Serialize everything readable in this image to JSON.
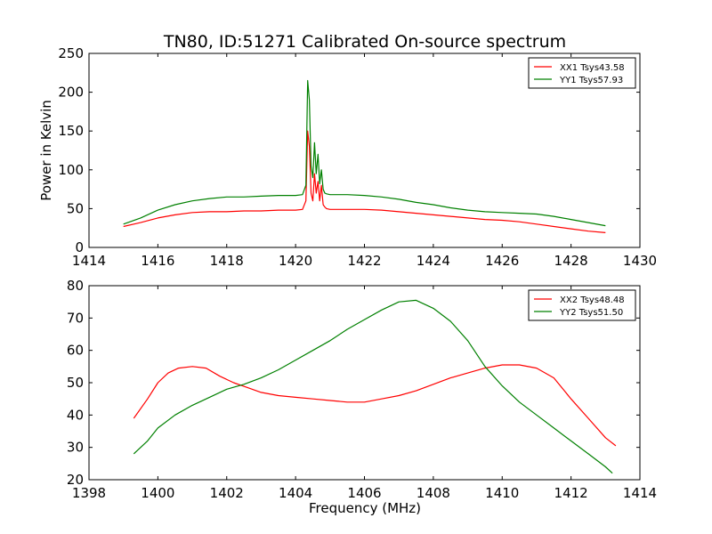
{
  "title": "TN80, ID:51271 Calibrated On-source spectrum",
  "chart_data": [
    {
      "type": "line",
      "ylabel": "Power in Kelvin",
      "xlabel": "",
      "xlim": [
        1414,
        1430
      ],
      "ylim": [
        0,
        250
      ],
      "xticks": [
        "1414",
        "1416",
        "1418",
        "1420",
        "1422",
        "1424",
        "1426",
        "1428",
        "1430"
      ],
      "yticks": [
        "0",
        "50",
        "100",
        "150",
        "200",
        "250"
      ],
      "legend_position": "top-right",
      "series": [
        {
          "name": "XX1 Tsys43.58",
          "color": "#ff0000",
          "x": [
            1415.0,
            1415.5,
            1416.0,
            1416.5,
            1417.0,
            1417.5,
            1418.0,
            1418.5,
            1419.0,
            1419.5,
            1420.0,
            1420.2,
            1420.3,
            1420.35,
            1420.4,
            1420.45,
            1420.5,
            1420.55,
            1420.6,
            1420.65,
            1420.7,
            1420.75,
            1420.8,
            1420.85,
            1420.9,
            1421.0,
            1421.5,
            1422.0,
            1422.5,
            1423.0,
            1423.5,
            1424.0,
            1424.5,
            1425.0,
            1425.5,
            1426.0,
            1426.5,
            1427.0,
            1427.5,
            1428.0,
            1428.5,
            1429.0
          ],
          "y": [
            27,
            32,
            38,
            42,
            45,
            46,
            46,
            47,
            47,
            48,
            48,
            49,
            60,
            150,
            130,
            70,
            60,
            95,
            70,
            85,
            60,
            80,
            55,
            52,
            50,
            49,
            49,
            49,
            48,
            46,
            44,
            42,
            40,
            38,
            36,
            35,
            33,
            30,
            27,
            24,
            21,
            19
          ]
        },
        {
          "name": "YY1 Tsys57.93",
          "color": "#008000",
          "x": [
            1415.0,
            1415.5,
            1416.0,
            1416.5,
            1417.0,
            1417.5,
            1418.0,
            1418.5,
            1419.0,
            1419.5,
            1420.0,
            1420.2,
            1420.3,
            1420.35,
            1420.4,
            1420.45,
            1420.5,
            1420.55,
            1420.6,
            1420.65,
            1420.7,
            1420.75,
            1420.8,
            1420.85,
            1420.9,
            1421.0,
            1421.5,
            1422.0,
            1422.5,
            1423.0,
            1423.5,
            1424.0,
            1424.5,
            1425.0,
            1425.5,
            1426.0,
            1426.5,
            1427.0,
            1427.5,
            1428.0,
            1428.5,
            1429.0
          ],
          "y": [
            30,
            38,
            48,
            55,
            60,
            63,
            65,
            65,
            66,
            67,
            67,
            68,
            80,
            215,
            190,
            105,
            90,
            135,
            95,
            120,
            82,
            100,
            75,
            70,
            69,
            68,
            68,
            67,
            65,
            62,
            58,
            55,
            51,
            48,
            46,
            45,
            44,
            43,
            40,
            36,
            32,
            28
          ]
        }
      ]
    },
    {
      "type": "line",
      "xlabel": "Frequency (MHz)",
      "ylabel": "",
      "xlim": [
        1398,
        1414
      ],
      "ylim": [
        20,
        80
      ],
      "xticks": [
        "1398",
        "1400",
        "1402",
        "1404",
        "1406",
        "1408",
        "1410",
        "1412",
        "1414"
      ],
      "yticks": [
        "20",
        "30",
        "40",
        "50",
        "60",
        "70",
        "80"
      ],
      "legend_position": "top-right",
      "series": [
        {
          "name": "XX2 Tsys48.48",
          "color": "#ff0000",
          "x": [
            1399.3,
            1399.7,
            1400.0,
            1400.3,
            1400.6,
            1401.0,
            1401.4,
            1401.8,
            1402.2,
            1402.6,
            1403.0,
            1403.5,
            1404.0,
            1404.5,
            1405.0,
            1405.5,
            1406.0,
            1406.5,
            1407.0,
            1407.5,
            1408.0,
            1408.5,
            1409.0,
            1409.5,
            1410.0,
            1410.5,
            1411.0,
            1411.5,
            1412.0,
            1412.5,
            1413.0,
            1413.3
          ],
          "y": [
            39,
            45,
            50,
            53,
            54.5,
            55,
            54.5,
            52,
            50,
            48.5,
            47,
            46,
            45.5,
            45,
            44.5,
            44,
            44,
            45,
            46,
            47.5,
            49.5,
            51.5,
            53,
            54.5,
            55.5,
            55.5,
            54.5,
            51.5,
            45,
            39,
            33,
            30.5
          ]
        },
        {
          "name": "YY2 Tsys51.50",
          "color": "#008000",
          "x": [
            1399.3,
            1399.7,
            1400.0,
            1400.5,
            1401.0,
            1401.5,
            1402.0,
            1402.5,
            1403.0,
            1403.5,
            1404.0,
            1404.5,
            1405.0,
            1405.5,
            1406.0,
            1406.5,
            1407.0,
            1407.5,
            1408.0,
            1408.5,
            1409.0,
            1409.5,
            1410.0,
            1410.5,
            1411.0,
            1411.5,
            1412.0,
            1412.5,
            1413.0,
            1413.2
          ],
          "y": [
            28,
            32,
            36,
            40,
            43,
            45.5,
            48,
            49.5,
            51.5,
            54,
            57,
            60,
            63,
            66.5,
            69.5,
            72.5,
            75,
            75.5,
            73,
            69,
            63,
            55,
            49,
            44,
            40,
            36,
            32,
            28,
            24,
            22
          ]
        }
      ]
    }
  ]
}
